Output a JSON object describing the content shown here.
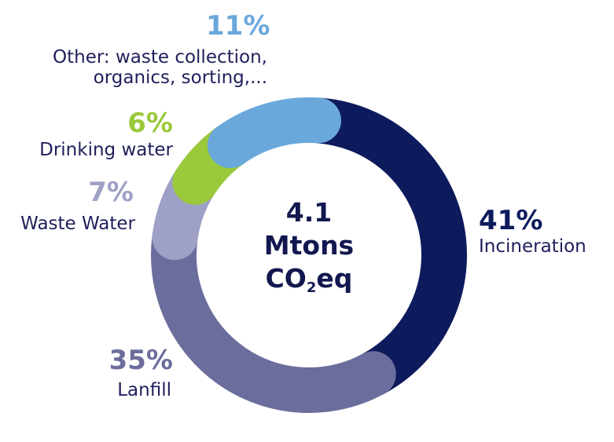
{
  "chart_data": {
    "type": "pie",
    "donut": true,
    "center_label": {
      "line1": "4.1",
      "line2": "Mtons",
      "line3_main": "CO",
      "line3_sub": "2",
      "line3_end": "eq"
    },
    "slices": [
      {
        "name": "Incineration",
        "value": 41,
        "label": "41%",
        "color": "#0d1a5c"
      },
      {
        "name": "Lanfill",
        "value": 35,
        "label": "35%",
        "color": "#6b6d9c"
      },
      {
        "name": "Waste Water",
        "value": 7,
        "label": "7%",
        "color": "#9fa0c6"
      },
      {
        "name": "Drinking water",
        "value": 6,
        "label": "6%",
        "color": "#9ac93c"
      },
      {
        "name": "Other: waste collection, organics, sorting,...",
        "value": 11,
        "label": "11%",
        "color": "#6aa8dc",
        "name_line1": "Other: waste collection,",
        "name_line2": "organics, sorting,..."
      }
    ]
  }
}
